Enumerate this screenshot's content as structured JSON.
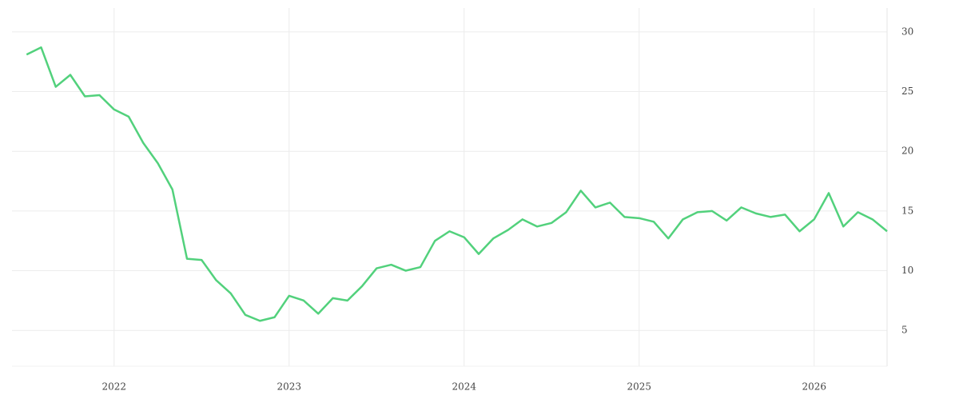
{
  "chart_data": {
    "type": "line",
    "categories": [
      null,
      null,
      null,
      null,
      null,
      null,
      "2022",
      null,
      null,
      null,
      null,
      null,
      null,
      null,
      null,
      null,
      null,
      null,
      "2023",
      null,
      null,
      null,
      null,
      null,
      null,
      null,
      null,
      null,
      null,
      null,
      "2024",
      null,
      null,
      null,
      null,
      null,
      null,
      null,
      null,
      null,
      null,
      null,
      "2025",
      null,
      null,
      null,
      null,
      null,
      null,
      null,
      null,
      null,
      null,
      null,
      "2026",
      null,
      null,
      null,
      null,
      null
    ],
    "values": [
      28.1,
      28.7,
      25.4,
      26.4,
      24.6,
      24.7,
      23.5,
      22.9,
      20.7,
      19.0,
      16.8,
      11.0,
      10.9,
      9.2,
      8.1,
      6.3,
      5.8,
      6.1,
      7.9,
      7.5,
      6.4,
      7.7,
      7.5,
      8.7,
      10.2,
      10.5,
      10.0,
      10.3,
      12.5,
      13.3,
      12.8,
      11.4,
      12.7,
      13.4,
      14.3,
      13.7,
      14.0,
      14.9,
      16.7,
      15.3,
      15.7,
      14.5,
      14.4,
      14.1,
      12.7,
      14.3,
      14.9,
      15.0,
      14.2,
      15.3,
      14.8,
      14.5,
      14.7,
      13.3,
      14.3,
      16.5,
      13.7,
      14.9,
      14.3,
      13.3
    ],
    "color": "#52d17c",
    "ylim": [
      2,
      32
    ],
    "yticks": [
      5,
      10,
      15,
      20,
      25,
      30
    ],
    "grid": true
  }
}
